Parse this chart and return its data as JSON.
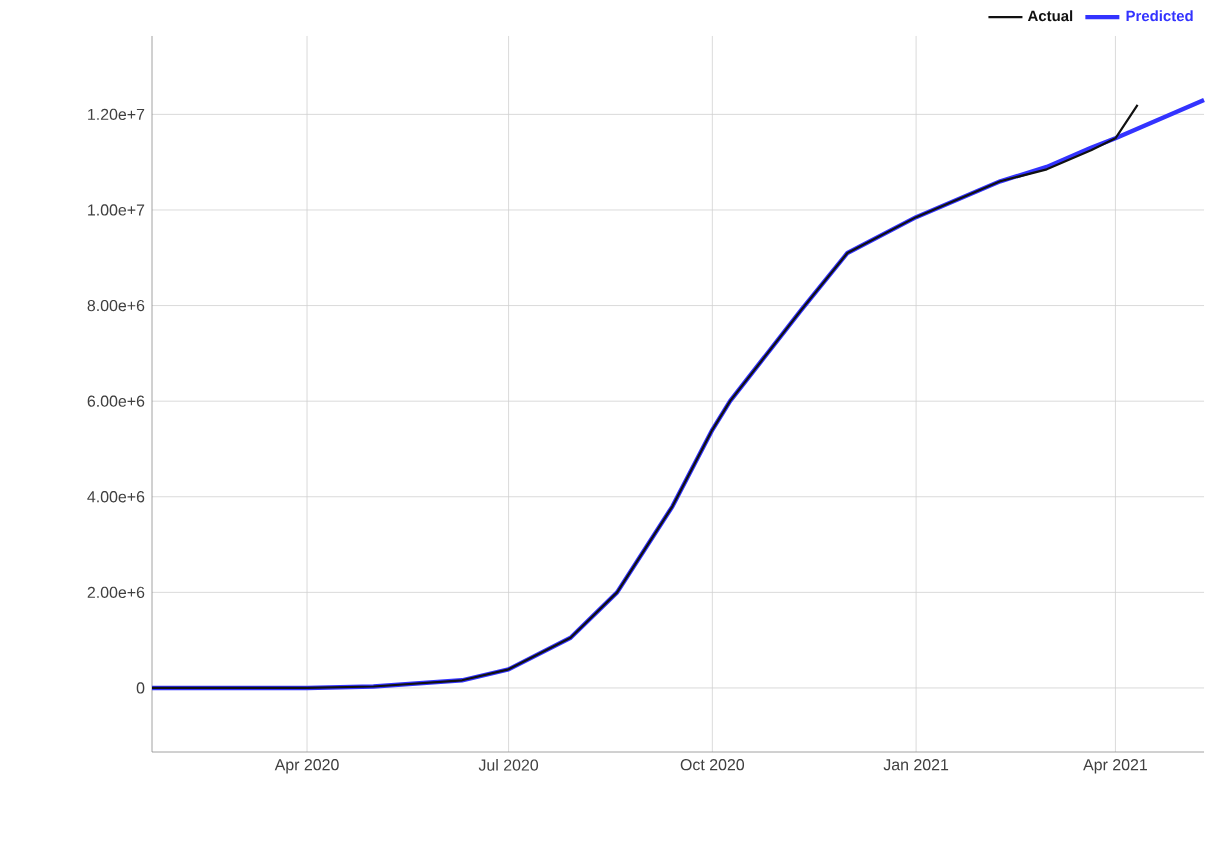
{
  "chart_data": {
    "type": "line",
    "xlim": [
      "2020-01-22",
      "2021-05-11"
    ],
    "xticks": [
      {
        "value": "2020-04-01",
        "label": "Apr 2020"
      },
      {
        "value": "2020-07-01",
        "label": "Jul 2020"
      },
      {
        "value": "2020-10-01",
        "label": "Oct 2020"
      },
      {
        "value": "2021-01-01",
        "label": "Jan 2021"
      },
      {
        "value": "2021-04-01",
        "label": "Apr 2021"
      }
    ],
    "ylim": [
      -1340000,
      13640000
    ],
    "yticks": [
      0,
      {
        "value": 2000000,
        "label": "2.00e+6"
      },
      {
        "value": 4000000,
        "label": "4.00e+6"
      },
      {
        "value": 6000000,
        "label": "6.00e+6"
      },
      {
        "value": 8000000,
        "label": "8.00e+6"
      },
      {
        "value": 10000000,
        "label": "1.00e+7"
      },
      {
        "value": 12000000,
        "label": "1.20e+7"
      }
    ],
    "grid": true,
    "legend": "top right",
    "line_style": "solid",
    "series": [
      {
        "name": "Actual",
        "color": "#111111",
        "x": [
          "2020-01-22",
          "2020-04-01",
          "2020-05-01",
          "2020-06-10",
          "2020-07-01",
          "2020-07-29",
          "2020-08-19",
          "2020-09-13",
          "2020-10-01",
          "2020-10-09",
          "2020-11-10",
          "2020-12-01",
          "2021-01-01",
          "2021-02-08",
          "2021-03-01",
          "2021-03-21",
          "2021-04-01",
          "2021-04-11"
        ],
        "values": [
          0,
          0,
          30000,
          160000,
          390000,
          1050000,
          2000000,
          3800000,
          5400000,
          6000000,
          7900000,
          9100000,
          9850000,
          10600000,
          10850000,
          11250000,
          11500000,
          12200000
        ]
      },
      {
        "name": "Predicted",
        "color": "#3333ff",
        "x": [
          "2020-01-22",
          "2020-04-01",
          "2020-05-01",
          "2020-06-10",
          "2020-07-01",
          "2020-07-29",
          "2020-08-19",
          "2020-09-13",
          "2020-10-01",
          "2020-10-09",
          "2020-11-10",
          "2020-12-01",
          "2021-01-01",
          "2021-02-08",
          "2021-03-01",
          "2021-03-21",
          "2021-04-01",
          "2021-05-11"
        ],
        "values": [
          0,
          0,
          30000,
          160000,
          390000,
          1050000,
          2000000,
          3800000,
          5400000,
          6000000,
          7900000,
          9100000,
          9850000,
          10600000,
          10900000,
          11300000,
          11500000,
          12300000
        ]
      }
    ]
  }
}
